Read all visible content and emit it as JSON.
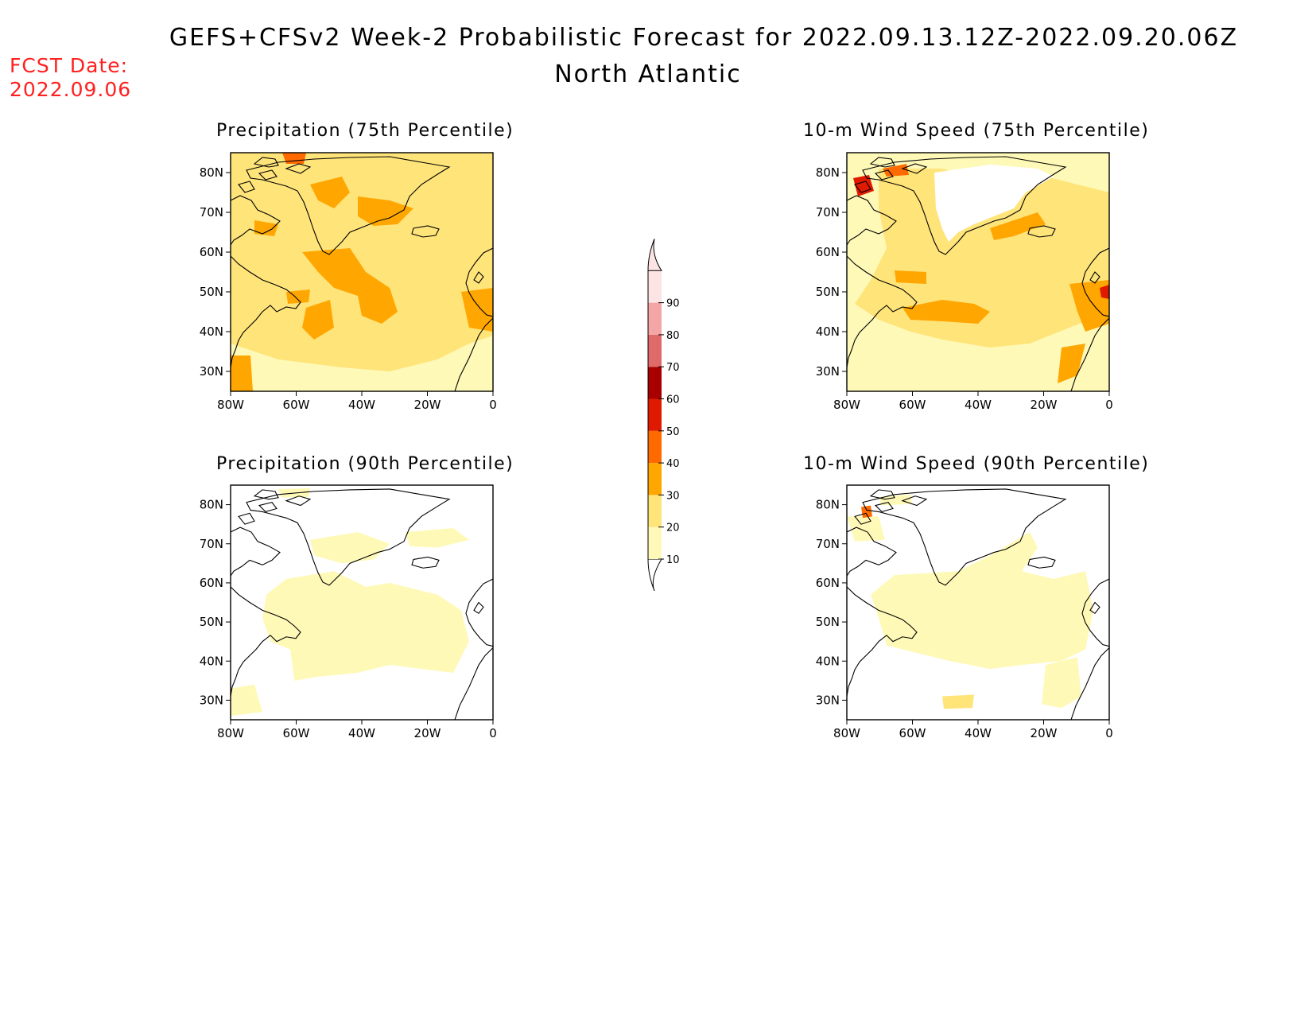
{
  "header": {
    "title": "GEFS+CFSv2 Week-2 Probabilistic Forecast for 2022.09.13.12Z-2022.09.20.06Z",
    "subtitle": "North Atlantic",
    "fcst_label": "FCST Date:",
    "fcst_date": "2022.09.06"
  },
  "panels": [
    {
      "id": "precip75",
      "title": "Precipitation (75th Percentile)"
    },
    {
      "id": "wind75",
      "title": "10-m Wind Speed (75th Percentile)"
    },
    {
      "id": "precip90",
      "title": "Precipitation (90th Percentile)"
    },
    {
      "id": "wind90",
      "title": "10-m Wind Speed (90th Percentile)"
    }
  ],
  "axes": {
    "lat_labels": [
      "80N",
      "70N",
      "60N",
      "50N",
      "40N",
      "30N"
    ],
    "lon_labels": [
      "80W",
      "60W",
      "40W",
      "20W",
      "0"
    ]
  },
  "colorbar": {
    "levels": [
      "10",
      "20",
      "30",
      "40",
      "50",
      "60",
      "70",
      "80",
      "90"
    ],
    "colors": [
      "#fff9b8",
      "#ffe47a",
      "#ffa600",
      "#ff6a00",
      "#e01a00",
      "#a80000",
      "#e06a6a",
      "#f4a5a5",
      "#fde4e4"
    ]
  }
}
